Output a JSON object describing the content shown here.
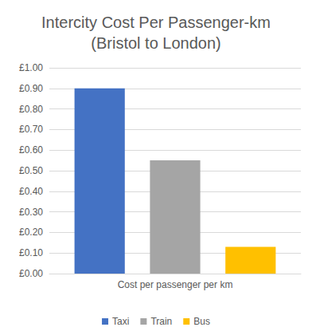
{
  "chart_data": {
    "type": "bar",
    "title": "Intercity Cost Per Passenger-km\n(Bristol to London)",
    "categories": [
      "Cost per passenger per km"
    ],
    "series": [
      {
        "name": "Taxi",
        "color": "#4472c4",
        "values": [
          0.9
        ]
      },
      {
        "name": "Train",
        "color": "#a5a5a5",
        "values": [
          0.55
        ]
      },
      {
        "name": "Bus",
        "color": "#ffc000",
        "values": [
          0.13
        ]
      }
    ],
    "ylim": [
      0,
      1
    ],
    "yticks": [
      {
        "value": 0,
        "label": "£0.00"
      },
      {
        "value": 0.1,
        "label": "£0.10"
      },
      {
        "value": 0.2,
        "label": "£0.20"
      },
      {
        "value": 0.3,
        "label": "£0.30"
      },
      {
        "value": 0.4,
        "label": "£0.40"
      },
      {
        "value": 0.5,
        "label": "£0.50"
      },
      {
        "value": 0.6,
        "label": "£0.60"
      },
      {
        "value": 0.7,
        "label": "£0.70"
      },
      {
        "value": 0.8,
        "label": "£0.80"
      },
      {
        "value": 0.9,
        "label": "£0.90"
      },
      {
        "value": 1,
        "label": "£1.00"
      }
    ],
    "grid": true,
    "legend": "bottom"
  }
}
